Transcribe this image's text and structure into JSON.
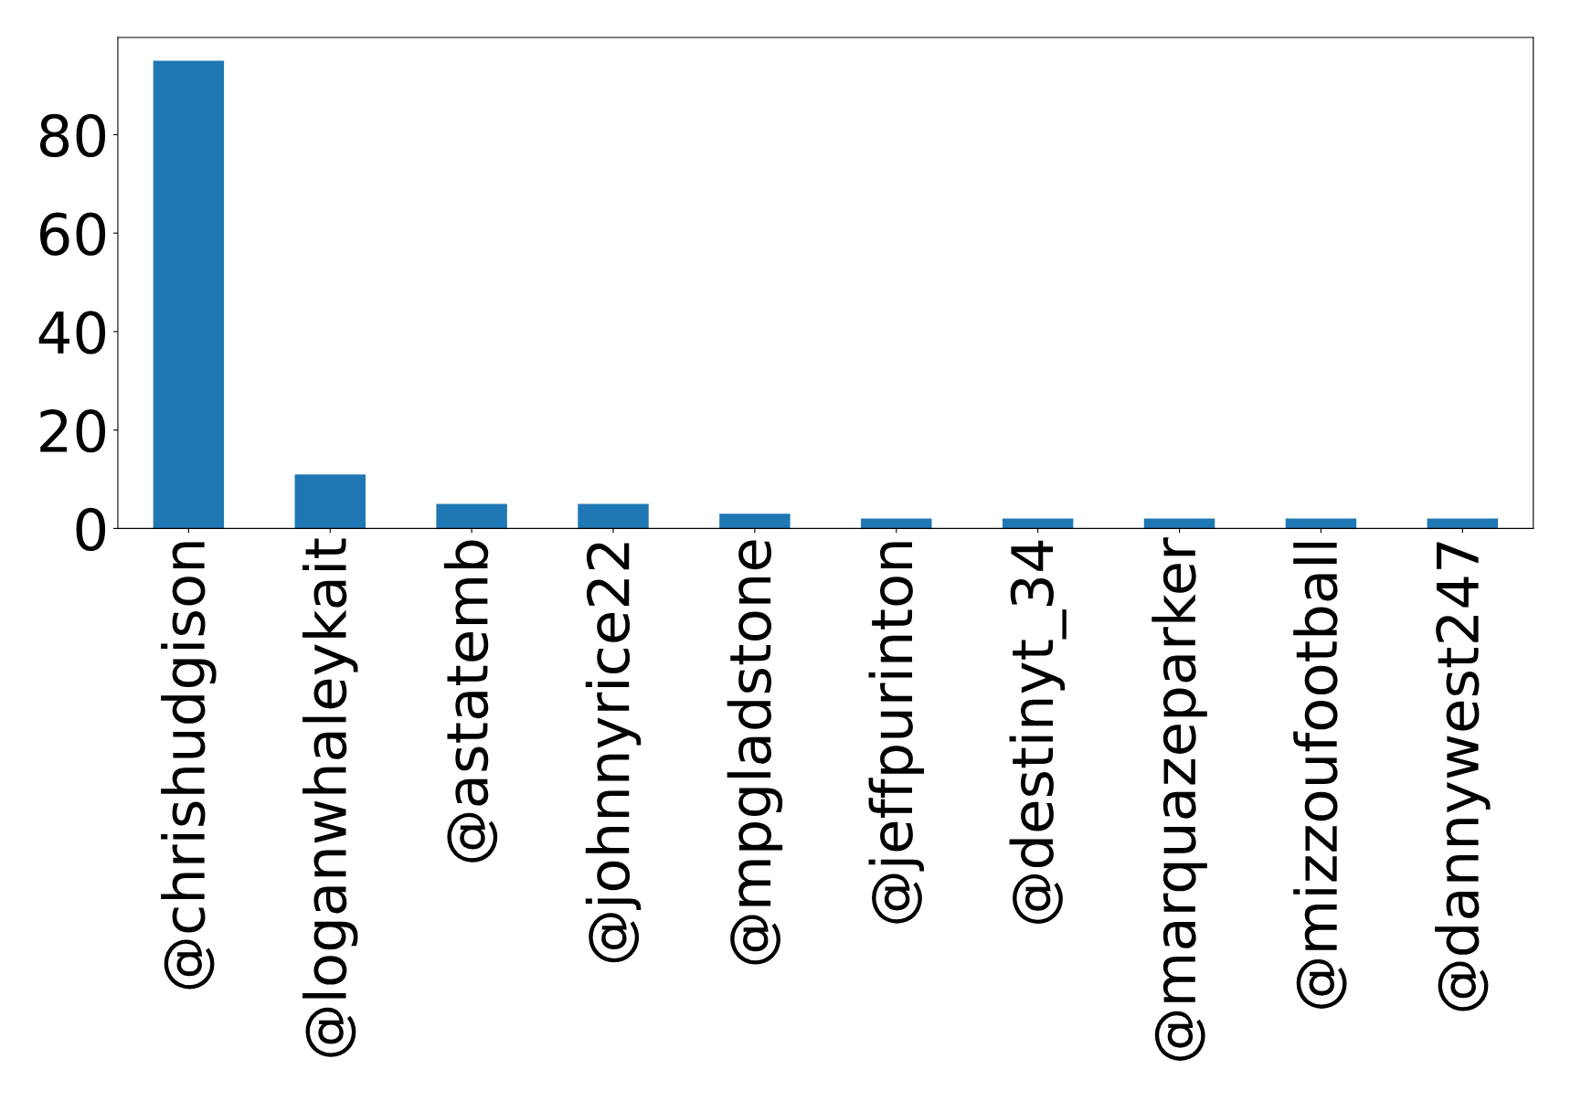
{
  "chart_data": {
    "type": "bar",
    "categories": [
      "@chrishudgison",
      "@loganwhaleykait",
      "@astatemb",
      "@johnnyrice22",
      "@mpgladstone",
      "@jeffpurinton",
      "@destinyt_34",
      "@marquazeparker",
      "@mizzoufootball",
      "@dannywest247"
    ],
    "values": [
      95,
      11,
      5,
      5,
      3,
      2,
      2,
      2,
      2,
      2
    ],
    "color": "#1f77b4",
    "ylim": [
      0,
      99.75
    ],
    "yticks": [
      0,
      20,
      40,
      60,
      80
    ],
    "grid": false
  }
}
